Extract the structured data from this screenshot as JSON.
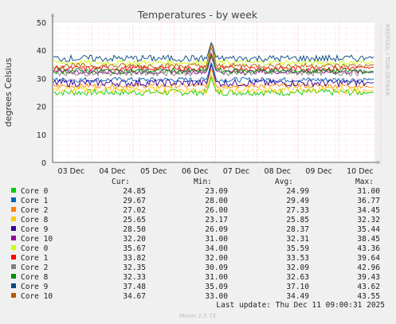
{
  "chart_data": {
    "type": "line",
    "title": "Temperatures - by week",
    "ylabel": "degrees Celsius",
    "side_label": "RRDTOOL / TOBI OETIKER",
    "footer": "Munin 2.0.73",
    "last_update": "Last update: Thu Dec 11 09:00:31 2025",
    "ylim": [
      0,
      50
    ],
    "yticks": [
      0,
      10,
      20,
      30,
      40,
      50
    ],
    "x_ticks": [
      "03 Dec",
      "04 Dec",
      "05 Dec",
      "06 Dec",
      "07 Dec",
      "08 Dec",
      "09 Dec",
      "10 Dec"
    ],
    "grid": true,
    "legend_columns": [
      "Cur:",
      "Min:",
      "Avg:",
      "Max:"
    ],
    "series": [
      {
        "name": "Core 0",
        "color": "#00cc00",
        "cur": "24.85",
        "min": "23.09",
        "avg": "24.99",
        "max": "31.00"
      },
      {
        "name": "Core 1",
        "color": "#0066b3",
        "cur": "29.67",
        "min": "28.00",
        "avg": "29.49",
        "max": "36.77"
      },
      {
        "name": "Core 2",
        "color": "#ff8000",
        "cur": "27.02",
        "min": "26.00",
        "avg": "27.33",
        "max": "34.45"
      },
      {
        "name": "Core 8",
        "color": "#ffcc00",
        "cur": "25.65",
        "min": "23.17",
        "avg": "25.85",
        "max": "32.32"
      },
      {
        "name": "Core 9",
        "color": "#330099",
        "cur": "28.50",
        "min": "26.09",
        "avg": "28.37",
        "max": "35.44"
      },
      {
        "name": "Core 10",
        "color": "#990099",
        "cur": "32.20",
        "min": "31.00",
        "avg": "32.31",
        "max": "38.45"
      },
      {
        "name": "Core 0",
        "color": "#ccff00",
        "cur": "35.67",
        "min": "34.00",
        "avg": "35.59",
        "max": "43.36"
      },
      {
        "name": "Core 1",
        "color": "#ff0000",
        "cur": "33.82",
        "min": "32.00",
        "avg": "33.53",
        "max": "39.64"
      },
      {
        "name": "Core 2",
        "color": "#808080",
        "cur": "32.35",
        "min": "30.09",
        "avg": "32.09",
        "max": "42.96"
      },
      {
        "name": "Core 8",
        "color": "#008f00",
        "cur": "32.33",
        "min": "31.00",
        "avg": "32.63",
        "max": "39.43"
      },
      {
        "name": "Core 9",
        "color": "#00487d",
        "cur": "37.48",
        "min": "35.09",
        "avg": "37.10",
        "max": "43.62"
      },
      {
        "name": "Core 10",
        "color": "#b35a00",
        "cur": "34.67",
        "min": "33.00",
        "avg": "34.49",
        "max": "43.55"
      }
    ]
  }
}
